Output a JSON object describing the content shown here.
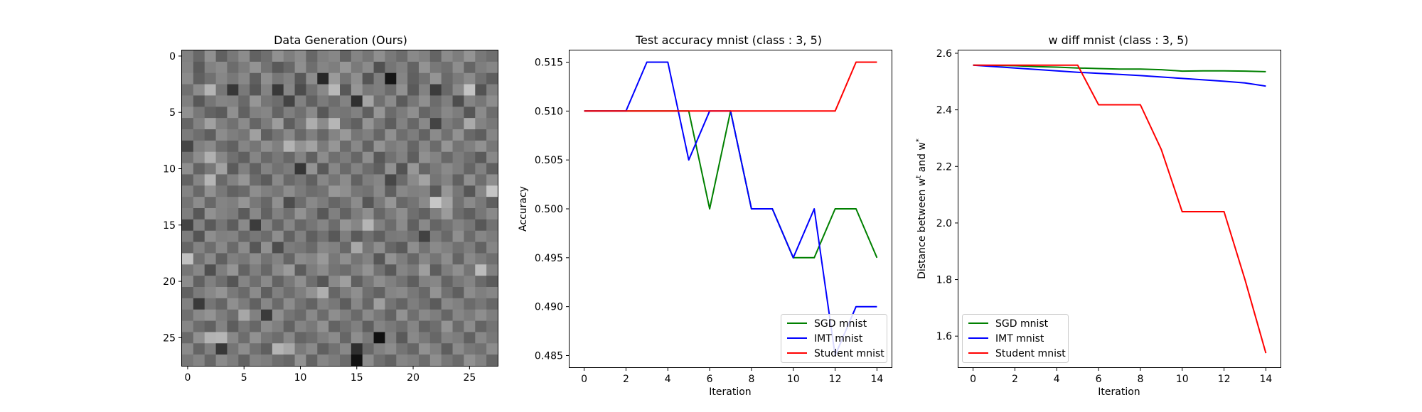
{
  "colors": {
    "sgd": "#008000",
    "imt": "#0000ff",
    "student": "#ff0000"
  },
  "chart_data": [
    {
      "type": "heatmap",
      "title": "Data Generation (Ours)",
      "colormap": "gray",
      "rows": 28,
      "cols": 28,
      "xticks": [
        0,
        5,
        10,
        15,
        20,
        25
      ],
      "yticks": [
        0,
        5,
        10,
        15,
        20,
        25
      ],
      "values": [
        [
          129,
          104,
          144,
          96,
          120,
          140,
          98,
          111,
          145,
          126,
          140,
          103,
          128,
          135,
          99,
          132,
          118,
          143,
          121,
          108,
          137,
          129,
          100,
          139,
          125,
          148,
          120,
          110
        ],
        [
          132,
          91,
          130,
          139,
          108,
          125,
          147,
          115,
          89,
          104,
          143,
          110,
          133,
          126,
          150,
          122,
          139,
          81,
          117,
          129,
          99,
          147,
          120,
          112,
          141,
          101,
          126,
          134
        ],
        [
          139,
          96,
          113,
          135,
          120,
          136,
          95,
          143,
          119,
          130,
          88,
          140,
          40,
          154,
          116,
          143,
          85,
          126,
          22,
          133,
          96,
          114,
          148,
          106,
          123,
          139,
          112,
          94
        ],
        [
          112,
          140,
          180,
          118,
          55,
          121,
          87,
          131,
          57,
          134,
          76,
          113,
          137,
          184,
          88,
          150,
          121,
          126,
          108,
          145,
          90,
          130,
          60,
          104,
          138,
          195,
          83,
          127
        ],
        [
          127,
          88,
          118,
          133,
          130,
          105,
          150,
          118,
          109,
          67,
          129,
          97,
          123,
          109,
          131,
          48,
          164,
          112,
          139,
          91,
          119,
          143,
          108,
          127,
          77,
          132,
          119,
          141
        ],
        [
          144,
          120,
          99,
          91,
          144,
          97,
          129,
          134,
          100,
          127,
          112,
          138,
          88,
          120,
          117,
          129,
          95,
          150,
          107,
          124,
          143,
          101,
          115,
          136,
          125,
          86,
          139,
          109
        ],
        [
          101,
          130,
          161,
          128,
          113,
          139,
          101,
          124,
          157,
          94,
          121,
          173,
          139,
          182,
          111,
          96,
          148,
          119,
          93,
          130,
          103,
          137,
          68,
          124,
          112,
          170,
          131,
          120
        ],
        [
          123,
          110,
          94,
          140,
          126,
          118,
          160,
          96,
          115,
          137,
          104,
          128,
          103,
          132,
          153,
          118,
          128,
          102,
          144,
          110,
          125,
          99,
          139,
          113,
          146,
          105,
          94,
          133
        ],
        [
          70,
          128,
          138,
          109,
          97,
          133,
          118,
          143,
          128,
          179,
          147,
          163,
          123,
          150,
          107,
          136,
          98,
          147,
          124,
          133,
          102,
          135,
          107,
          149,
          116,
          128,
          145,
          119
        ],
        [
          115,
          141,
          176,
          135,
          112,
          96,
          133,
          105,
          120,
          103,
          131,
          96,
          140,
          111,
          125,
          102,
          142,
          88,
          113,
          130,
          94,
          144,
          131,
          104,
          125,
          111,
          90,
          136
        ],
        [
          142,
          99,
          120,
          161,
          91,
          128,
          97,
          131,
          114,
          124,
          54,
          147,
          89,
          135,
          106,
          131,
          109,
          95,
          145,
          83,
          151,
          102,
          122,
          138,
          126,
          101,
          129,
          96
        ],
        [
          98,
          133,
          181,
          105,
          130,
          150,
          108,
          92,
          137,
          105,
          118,
          96,
          135,
          117,
          140,
          98,
          126,
          134,
          71,
          107,
          138,
          163,
          117,
          131,
          97,
          143,
          110,
          142
        ],
        [
          131,
          104,
          145,
          120,
          98,
          106,
          142,
          128,
          119,
          141,
          123,
          109,
          115,
          151,
          143,
          119,
          114,
          137,
          95,
          136,
          128,
          131,
          89,
          150,
          119,
          86,
          135,
          197
        ],
        [
          116,
          140,
          104,
          132,
          127,
          149,
          120,
          103,
          144,
          77,
          109,
          137,
          124,
          102,
          115,
          140,
          86,
          122,
          150,
          104,
          116,
          138,
          199,
          165,
          114,
          138,
          121,
          95
        ],
        [
          126,
          87,
          145,
          131,
          124,
          91,
          136,
          98,
          129,
          112,
          146,
          122,
          88,
          128,
          98,
          125,
          143,
          103,
          124,
          142,
          111,
          97,
          127,
          155,
          109,
          95,
          119,
          137
        ],
        [
          68,
          130,
          90,
          118,
          93,
          138,
          60,
          133,
          101,
          134,
          103,
          118,
          133,
          108,
          149,
          134,
          181,
          129,
          108,
          139,
          96,
          137,
          101,
          115,
          131,
          119,
          88,
          114
        ],
        [
          125,
          84,
          142,
          128,
          131,
          104,
          119,
          108,
          142,
          98,
          129,
          95,
          114,
          88,
          127,
          90,
          113,
          95,
          121,
          124,
          112,
          66,
          124,
          105,
          143,
          107,
          134,
          124
        ],
        [
          102,
          131,
          109,
          137,
          106,
          140,
          87,
          145,
          77,
          124,
          118,
          106,
          135,
          129,
          104,
          168,
          119,
          141,
          103,
          90,
          142,
          115,
          138,
          129,
          113,
          126,
          98,
          133
        ],
        [
          193,
          113,
          138,
          96,
          128,
          120,
          140,
          115,
          131,
          101,
          140,
          133,
          153,
          120,
          143,
          117,
          131,
          87,
          146,
          126,
          103,
          135,
          117,
          141,
          100,
          137,
          124,
          111
        ],
        [
          118,
          135,
          79,
          126,
          149,
          99,
          127,
          103,
          138,
          155,
          92,
          125,
          140,
          116,
          108,
          128,
          147,
          114,
          89,
          133,
          122,
          158,
          93,
          126,
          143,
          117,
          188,
          129
        ],
        [
          140,
          97,
          128,
          110,
          85,
          133,
          111,
          138,
          99,
          121,
          143,
          110,
          86,
          137,
          159,
          96,
          120,
          142,
          128,
          115,
          94,
          130,
          135,
          100,
          121,
          132,
          106,
          91
        ],
        [
          97,
          123,
          136,
          148,
          121,
          106,
          139,
          95,
          128,
          110,
          127,
          146,
          175,
          102,
          126,
          143,
          111,
          98,
          133,
          138,
          120,
          104,
          147,
          113,
          95,
          140,
          127,
          134
        ],
        [
          129,
          58,
          117,
          101,
          143,
          124,
          97,
          135,
          106,
          140,
          115,
          99,
          131,
          120,
          93,
          135,
          103,
          159,
          116,
          100,
          126,
          112,
          91,
          137,
          129,
          107,
          119,
          103
        ],
        [
          112,
          137,
          147,
          125,
          110,
          167,
          129,
          59,
          143,
          117,
          106,
          137,
          108,
          142,
          127,
          106,
          138,
          120,
          99,
          146,
          111,
          137,
          126,
          102,
          134,
          124,
          142,
          126
        ],
        [
          134,
          109,
          97,
          131,
          93,
          120,
          103,
          140,
          128,
          98,
          132,
          121,
          145,
          99,
          113,
          128,
          95,
          132,
          121,
          110,
          133,
          99,
          110,
          148,
          107,
          140,
          100,
          115
        ],
        [
          106,
          144,
          179,
          182,
          136,
          109,
          145,
          119,
          109,
          136,
          101,
          110,
          127,
          139,
          102,
          142,
          121,
          16,
          129,
          90,
          137,
          121,
          103,
          131,
          125,
          97,
          136,
          120
        ],
        [
          138,
          101,
          128,
          56,
          117,
          141,
          113,
          95,
          180,
          168,
          123,
          138,
          96,
          114,
          136,
          47,
          105,
          129,
          140,
          116,
          102,
          145,
          128,
          94,
          138,
          120,
          113,
          140
        ],
        [
          120,
          132,
          103,
          139,
          125,
          98,
          131,
          126,
          110,
          103,
          146,
          99,
          134,
          124,
          107,
          17,
          140,
          111,
          98,
          133,
          127,
          108,
          142,
          119,
          106,
          145,
          130,
          101
        ]
      ]
    },
    {
      "type": "line",
      "title": "Test accuracy mnist (class : 3, 5)",
      "xlabel": "Iteration",
      "ylabel": "Accuracy",
      "xlim": [
        -0.7,
        14.7
      ],
      "ylim": [
        0.4838,
        0.5162
      ],
      "xticks": [
        0,
        2,
        4,
        6,
        8,
        10,
        12,
        14
      ],
      "yticks": [
        0.485,
        0.49,
        0.495,
        0.5,
        0.505,
        0.51,
        0.515
      ],
      "ytick_labels": [
        "0.485",
        "0.490",
        "0.495",
        "0.500",
        "0.505",
        "0.510",
        "0.515"
      ],
      "legend_position": "lower right",
      "x": [
        0,
        1,
        2,
        3,
        4,
        5,
        6,
        7,
        8,
        9,
        10,
        11,
        12,
        13,
        14
      ],
      "series": [
        {
          "name": "SGD mnist",
          "color_key": "sgd",
          "values": [
            0.51,
            0.51,
            0.51,
            0.51,
            0.51,
            0.51,
            0.5,
            0.51,
            0.5,
            0.5,
            0.495,
            0.495,
            0.5,
            0.5,
            0.495
          ]
        },
        {
          "name": "IMT mnist",
          "color_key": "imt",
          "values": [
            0.51,
            0.51,
            0.51,
            0.515,
            0.515,
            0.505,
            0.51,
            0.51,
            0.5,
            0.5,
            0.495,
            0.5,
            0.485,
            0.49,
            0.49
          ]
        },
        {
          "name": "Student mnist",
          "color_key": "student",
          "values": [
            0.51,
            0.51,
            0.51,
            0.51,
            0.51,
            0.51,
            0.51,
            0.51,
            0.51,
            0.51,
            0.51,
            0.51,
            0.51,
            0.515,
            0.515
          ]
        }
      ]
    },
    {
      "type": "line",
      "title": "w diff mnist (class : 3, 5)",
      "xlabel": "Iteration",
      "ylabel": "Distance between w",
      "ylabel_sup_1": "t",
      "ylabel_mid": " and w",
      "ylabel_sup_2": "*",
      "xlim": [
        -0.7,
        14.7
      ],
      "ylim": [
        1.49,
        2.61
      ],
      "xticks": [
        0,
        2,
        4,
        6,
        8,
        10,
        12,
        14
      ],
      "yticks": [
        1.6,
        1.8,
        2.0,
        2.2,
        2.4,
        2.6
      ],
      "ytick_labels": [
        "1.6",
        "1.8",
        "2.0",
        "2.2",
        "2.4",
        "2.6"
      ],
      "legend_position": "lower left",
      "x": [
        0,
        1,
        2,
        3,
        4,
        5,
        6,
        7,
        8,
        9,
        10,
        11,
        12,
        13,
        14
      ],
      "series": [
        {
          "name": "SGD mnist",
          "color_key": "sgd",
          "values": [
            2.558,
            2.557,
            2.556,
            2.553,
            2.551,
            2.548,
            2.546,
            2.544,
            2.544,
            2.542,
            2.537,
            2.538,
            2.538,
            2.537,
            2.535
          ]
        },
        {
          "name": "IMT mnist",
          "color_key": "imt",
          "values": [
            2.558,
            2.553,
            2.548,
            2.543,
            2.538,
            2.533,
            2.529,
            2.525,
            2.521,
            2.516,
            2.511,
            2.506,
            2.501,
            2.495,
            2.484
          ]
        },
        {
          "name": "Student mnist",
          "color_key": "student",
          "values": [
            2.558,
            2.558,
            2.558,
            2.558,
            2.558,
            2.558,
            2.418,
            2.418,
            2.418,
            2.26,
            2.04,
            2.04,
            2.04,
            1.8,
            1.54
          ]
        }
      ]
    }
  ]
}
